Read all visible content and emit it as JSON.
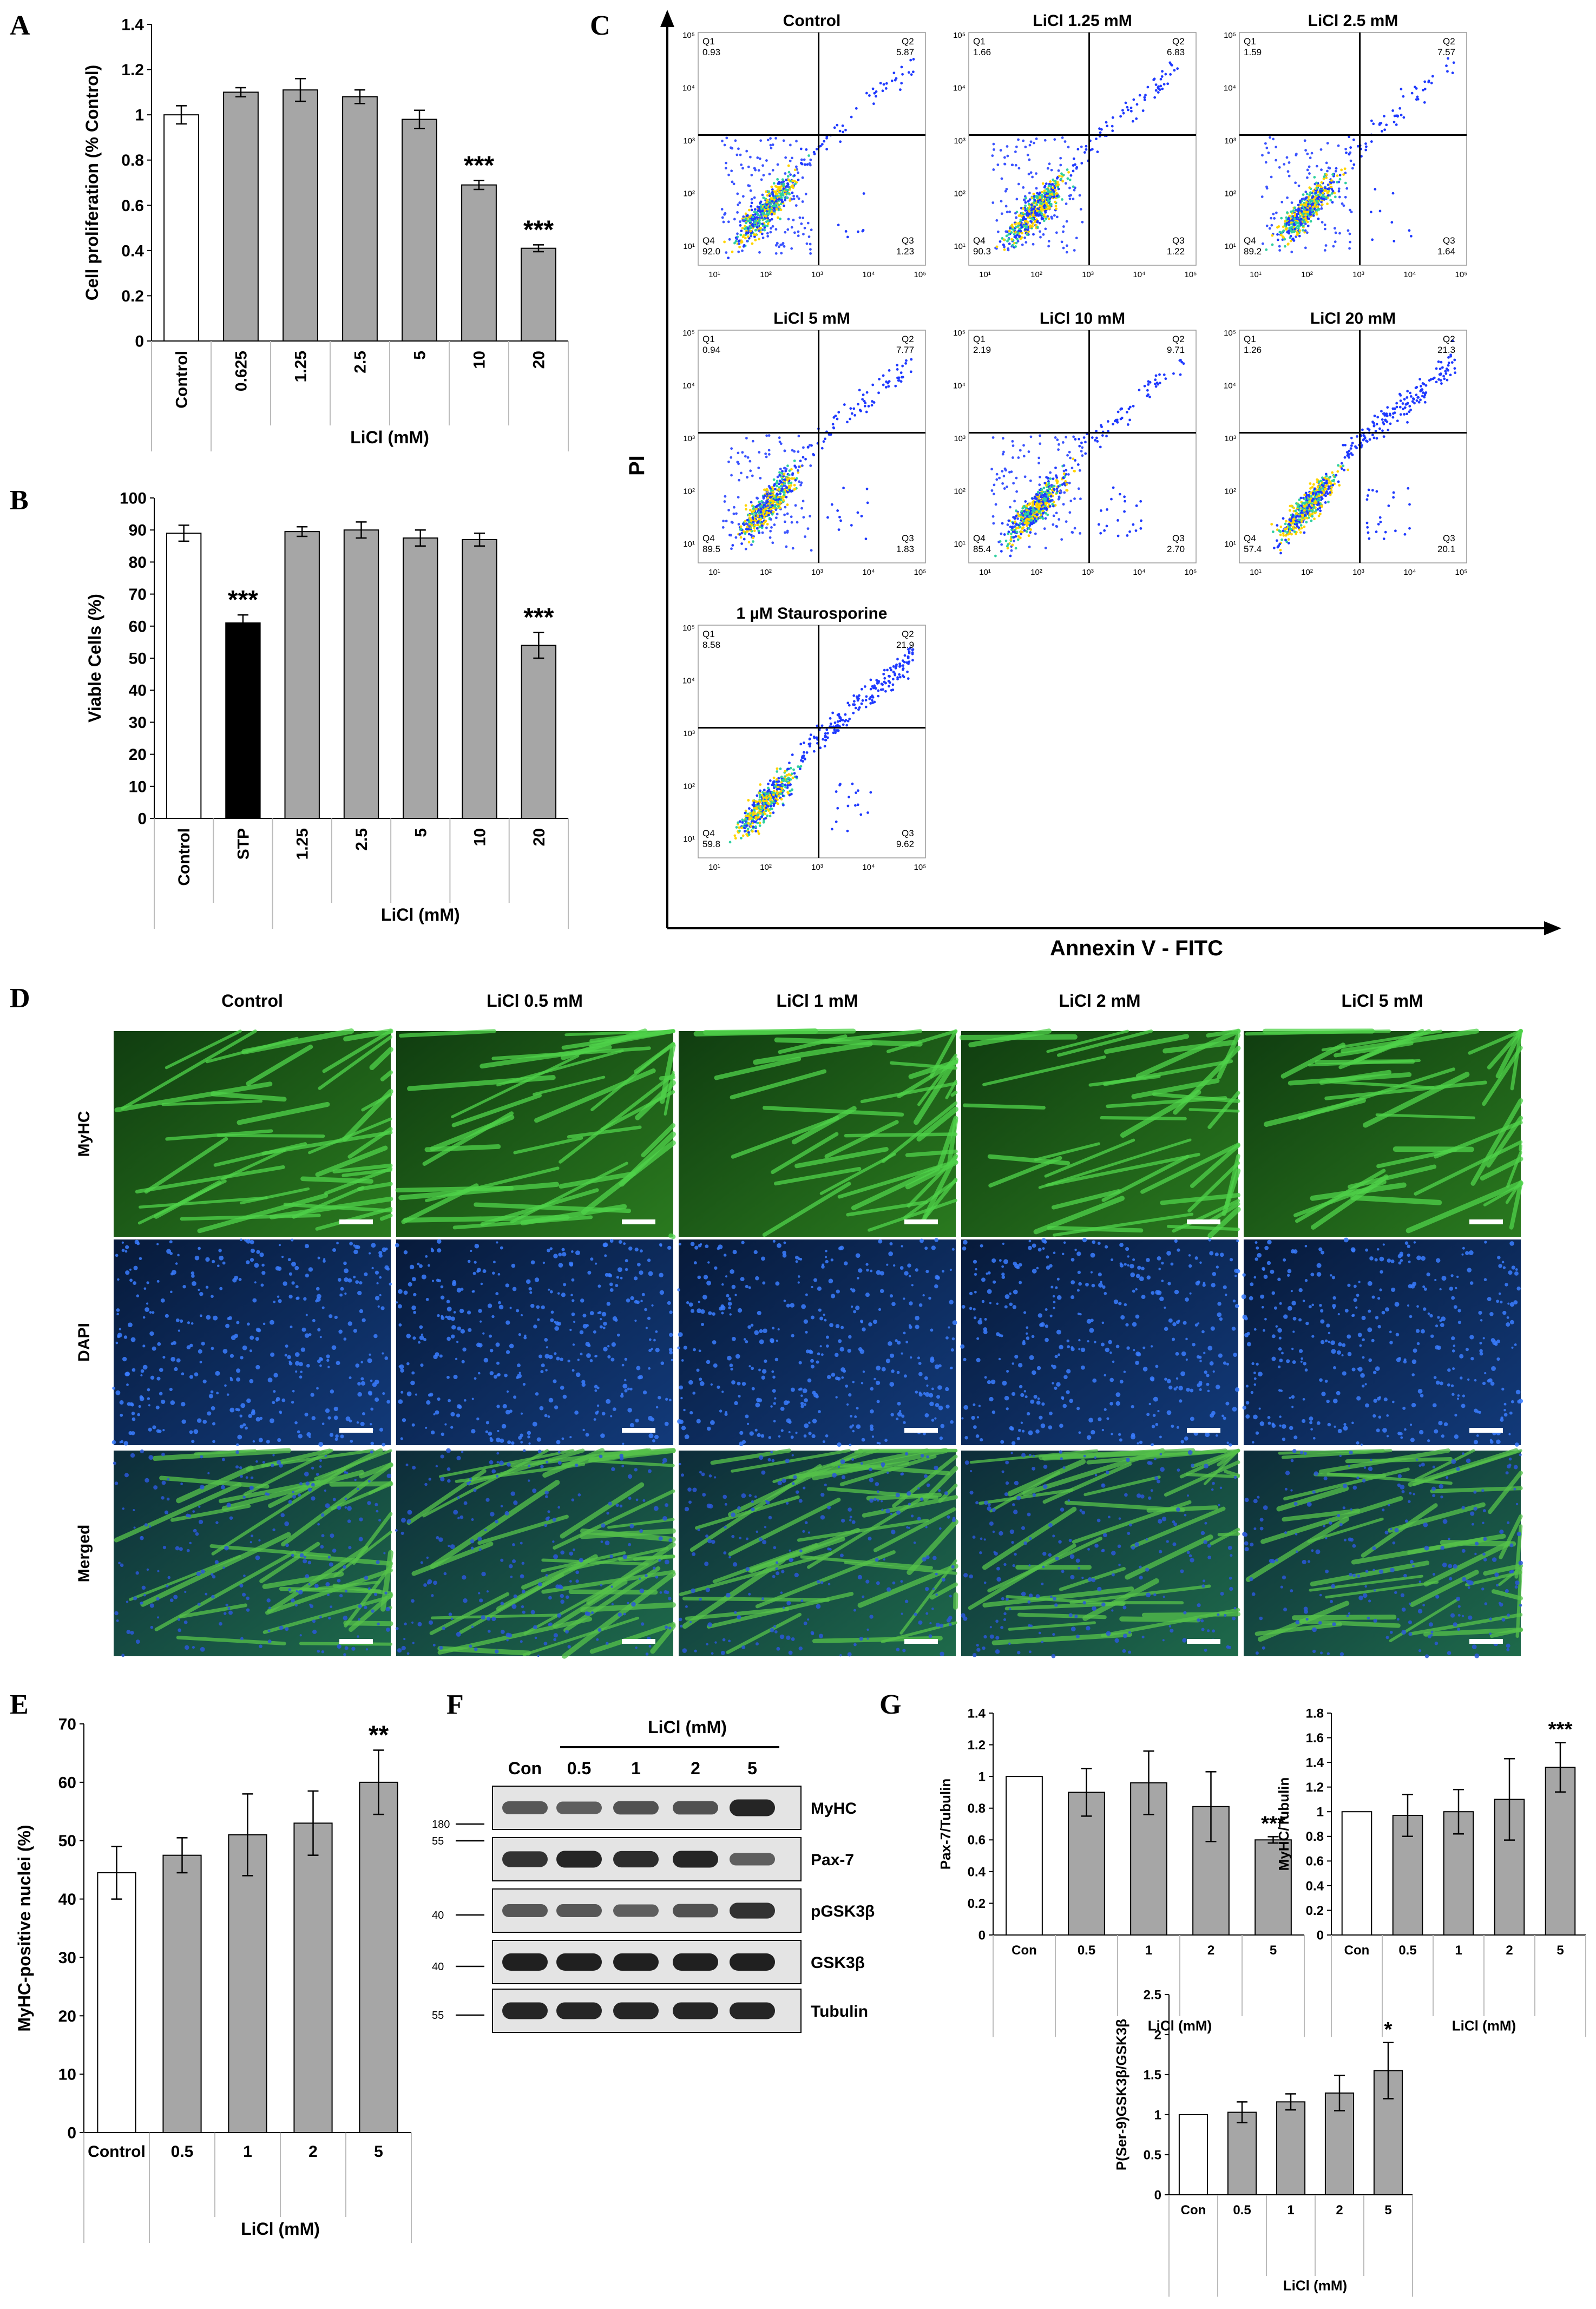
{
  "panels": {
    "A": {
      "label": "A"
    },
    "B": {
      "label": "B"
    },
    "C": {
      "label": "C"
    },
    "D": {
      "label": "D"
    },
    "E": {
      "label": "E"
    },
    "F": {
      "label": "F"
    },
    "G": {
      "label": "G"
    }
  },
  "colors": {
    "control": "#ffffff",
    "licl": "#a6a6a6",
    "stp": "#000000",
    "flow_low": "#1f3aff",
    "flow_mid": "#2fd0a0",
    "flow_high": "#ffd400"
  },
  "chart_data": [
    {
      "id": "A",
      "type": "bar",
      "categories": [
        "Control",
        "0.625",
        "1.25",
        "2.5",
        "5",
        "10",
        "20"
      ],
      "values": [
        1.0,
        1.1,
        1.11,
        1.08,
        0.98,
        0.69,
        0.41
      ],
      "errors": [
        0.04,
        0.02,
        0.05,
        0.03,
        0.04,
        0.02,
        0.015
      ],
      "annotations": [
        "",
        "",
        "",
        "",
        "",
        "***",
        "***"
      ],
      "bar_colors": [
        "#ffffff",
        "#a6a6a6",
        "#a6a6a6",
        "#a6a6a6",
        "#a6a6a6",
        "#a6a6a6",
        "#a6a6a6"
      ],
      "ylim": [
        0,
        1.4
      ],
      "yticks": [
        "0",
        "0.2",
        "0.4",
        "0.6",
        "0.8",
        "1",
        "1.2",
        "1.4"
      ],
      "ylabel": "Cell proliferation (% Control)",
      "xlabel": "LiCl (mM)",
      "group_start": 1
    },
    {
      "id": "B",
      "type": "bar",
      "categories": [
        "Control",
        "STP",
        "1.25",
        "2.5",
        "5",
        "10",
        "20"
      ],
      "values": [
        89,
        61,
        89.5,
        90,
        87.5,
        87,
        54
      ],
      "errors": [
        2.5,
        2.5,
        1.5,
        2.5,
        2.5,
        2,
        4
      ],
      "annotations": [
        "",
        "***",
        "",
        "",
        "",
        "",
        "***"
      ],
      "bar_colors": [
        "#ffffff",
        "#000000",
        "#a6a6a6",
        "#a6a6a6",
        "#a6a6a6",
        "#a6a6a6",
        "#a6a6a6"
      ],
      "ylim": [
        0,
        100
      ],
      "yticks": [
        "0",
        "10",
        "20",
        "30",
        "40",
        "50",
        "60",
        "70",
        "80",
        "90",
        "100"
      ],
      "ylabel": "Viable Cells (%)",
      "xlabel": "LiCl (mM)",
      "group_start": 2
    },
    {
      "id": "C",
      "type": "scatter",
      "xlabel": "Annexin V - FITC",
      "ylabel": "PI",
      "axis_ticks": [
        "10¹",
        "10²",
        "10³",
        "10⁴",
        "10⁵"
      ],
      "plots": [
        {
          "title": "Control",
          "q1": "0.93",
          "q2": "5.87",
          "q3": "1.23",
          "q4": "92.0"
        },
        {
          "title": "LiCl 1.25 mM",
          "q1": "1.66",
          "q2": "6.83",
          "q3": "1.22",
          "q4": "90.3"
        },
        {
          "title": "LiCl 2.5 mM",
          "q1": "1.59",
          "q2": "7.57",
          "q3": "1.64",
          "q4": "89.2"
        },
        {
          "title": "LiCl 5 mM",
          "q1": "0.94",
          "q2": "7.77",
          "q3": "1.83",
          "q4": "89.5"
        },
        {
          "title": "LiCl 10 mM",
          "q1": "2.19",
          "q2": "9.71",
          "q3": "2.70",
          "q4": "85.4"
        },
        {
          "title": "LiCl 20 mM",
          "q1": "1.26",
          "q2": "21.3",
          "q3": "20.1",
          "q4": "57.4"
        },
        {
          "title": "1 µM Staurosporine",
          "q1": "8.58",
          "q2": "21.9",
          "q3": "9.62",
          "q4": "59.8"
        }
      ]
    },
    {
      "id": "E",
      "type": "bar",
      "categories": [
        "Control",
        "0.5",
        "1",
        "2",
        "5"
      ],
      "values": [
        44.5,
        47.5,
        51,
        53,
        60
      ],
      "errors": [
        4.5,
        3,
        7,
        5.5,
        5.5
      ],
      "annotations": [
        "",
        "",
        "",
        "",
        "**"
      ],
      "bar_colors": [
        "#ffffff",
        "#a6a6a6",
        "#a6a6a6",
        "#a6a6a6",
        "#a6a6a6"
      ],
      "ylim": [
        0,
        70
      ],
      "yticks": [
        "0",
        "10",
        "20",
        "30",
        "40",
        "50",
        "60",
        "70"
      ],
      "ylabel": "MyHC-positive nuclei (%)",
      "xlabel": "LiCl (mM)",
      "group_start": 1
    },
    {
      "id": "G1",
      "type": "bar",
      "categories": [
        "Con",
        "0.5",
        "1",
        "2",
        "5"
      ],
      "values": [
        1.0,
        0.9,
        0.96,
        0.81,
        0.6
      ],
      "errors": [
        0,
        0.15,
        0.2,
        0.22,
        0.02
      ],
      "annotations": [
        "",
        "",
        "",
        "",
        "***"
      ],
      "bar_colors": [
        "#ffffff",
        "#a6a6a6",
        "#a6a6a6",
        "#a6a6a6",
        "#a6a6a6"
      ],
      "ylim": [
        0,
        1.4
      ],
      "yticks": [
        "0",
        "0.2",
        "0.4",
        "0.6",
        "0.8",
        "1",
        "1.2",
        "1.4"
      ],
      "ylabel": "Pax-7/Tubulin",
      "xlabel": "LiCl (mM)",
      "group_start": 1
    },
    {
      "id": "G2",
      "type": "bar",
      "categories": [
        "Con",
        "0.5",
        "1",
        "2",
        "5"
      ],
      "values": [
        1.0,
        0.97,
        1.0,
        1.1,
        1.36
      ],
      "errors": [
        0,
        0.17,
        0.18,
        0.33,
        0.2
      ],
      "annotations": [
        "",
        "",
        "",
        "",
        "***"
      ],
      "bar_colors": [
        "#ffffff",
        "#a6a6a6",
        "#a6a6a6",
        "#a6a6a6",
        "#a6a6a6"
      ],
      "ylim": [
        0,
        1.8
      ],
      "yticks": [
        "0",
        "0.2",
        "0.4",
        "0.6",
        "0.8",
        "1",
        "1.2",
        "1.4",
        "1.6",
        "1.8"
      ],
      "ylabel": "MyHC/Tubulin",
      "xlabel": "LiCl (mM)",
      "group_start": 1
    },
    {
      "id": "G3",
      "type": "bar",
      "categories": [
        "Con",
        "0.5",
        "1",
        "2",
        "5"
      ],
      "values": [
        1.0,
        1.03,
        1.16,
        1.27,
        1.55
      ],
      "errors": [
        0,
        0.13,
        0.1,
        0.22,
        0.35
      ],
      "annotations": [
        "",
        "",
        "",
        "",
        "*"
      ],
      "bar_colors": [
        "#ffffff",
        "#a6a6a6",
        "#a6a6a6",
        "#a6a6a6",
        "#a6a6a6"
      ],
      "ylim": [
        0,
        2.5
      ],
      "yticks": [
        "0",
        "0.5",
        "1",
        "1.5",
        "2",
        "2.5"
      ],
      "ylabel": "P(Ser-9)GSK3β/GSK3β",
      "xlabel": "LiCl (mM)",
      "group_start": 1
    }
  ],
  "microscopy": {
    "columns": [
      "Control",
      "LiCl 0.5 mM",
      "LiCl 1 mM",
      "LiCl 2 mM",
      "LiCl 5 mM"
    ],
    "rows": [
      "MyHC",
      "DAPI",
      "Merged"
    ]
  },
  "western": {
    "header": "LiCl (mM)",
    "lanes": [
      "Con",
      "0.5",
      "1",
      "2",
      "5"
    ],
    "intensities": [
      [
        0.55,
        0.5,
        0.6,
        0.6,
        0.95
      ],
      [
        0.85,
        0.95,
        0.9,
        0.95,
        0.5
      ],
      [
        0.55,
        0.55,
        0.5,
        0.6,
        0.85
      ],
      [
        1,
        1,
        1,
        1,
        1
      ],
      [
        0.95,
        0.95,
        0.95,
        0.95,
        0.95
      ]
    ],
    "proteins": [
      "MyHC",
      "Pax-7",
      "pGSK3β",
      "GSK3β",
      "Tubulin"
    ],
    "markers": [
      {
        "text": "180",
        "band": 0
      },
      {
        "text": "55",
        "band": 1
      },
      {
        "text": "40",
        "band": 2
      },
      {
        "text": "40",
        "band": 3
      },
      {
        "text": "55",
        "band": 4
      }
    ]
  }
}
